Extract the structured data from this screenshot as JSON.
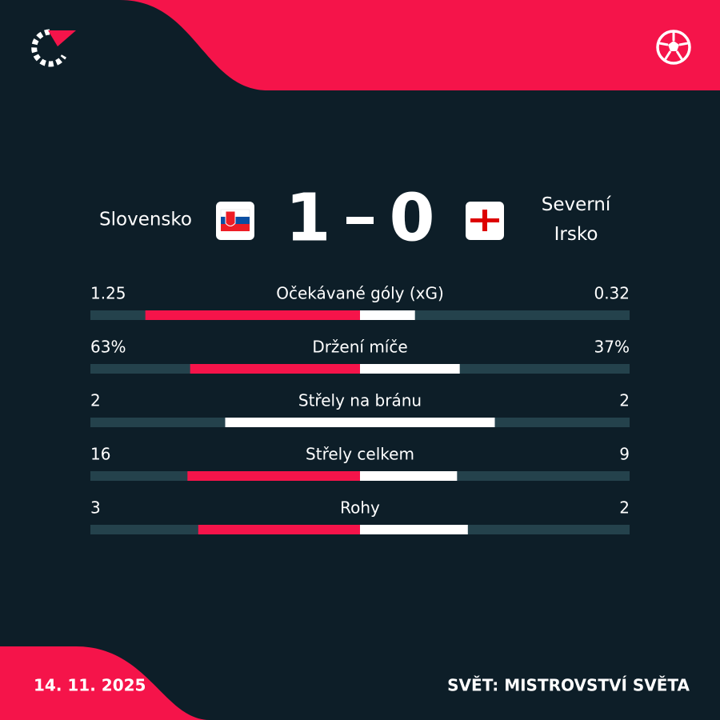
{
  "match": {
    "home_team": "Slovensko",
    "away_team": "Severní Irsko",
    "home_score": 1,
    "away_score": 0,
    "date": "14. 11. 2025",
    "competition": "SVĚT: MISTROVSTVÍ SVĚTA"
  },
  "stats": [
    {
      "name": "Očekávané góly (xG)",
      "home": 1.25,
      "away": 0.32
    },
    {
      "name": "Držení míče",
      "home": {
        "value": 63,
        "label": "63%"
      },
      "away": {
        "value": 37,
        "label": "37%"
      }
    },
    {
      "name": "Střely na bránu",
      "home": 2,
      "away": 2
    },
    {
      "name": "Střely celkem",
      "home": 16,
      "away": 9
    },
    {
      "name": "Rohy",
      "home": 3,
      "away": 2
    }
  ]
}
